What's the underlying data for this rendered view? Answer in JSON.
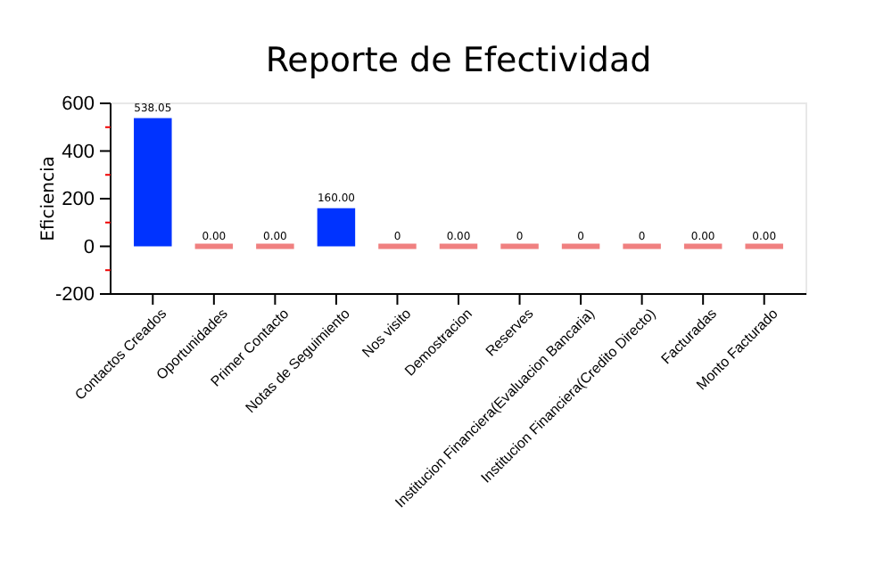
{
  "chart_data": {
    "type": "bar",
    "title": "Reporte de Efectividad",
    "ylabel": "Eficiencia",
    "categories": [
      "Contactos Creados",
      "Oportunidades",
      "Primer Contacto",
      "Notas de Seguimiento",
      "Nos visito",
      "Demostracion",
      "Reserves",
      "Institucion Financiera(Evaluacion Bancaria)",
      "Institucion Financiera(Credito Directo)",
      "Facturadas",
      "Monto Facturado"
    ],
    "values": [
      538.05,
      0,
      0,
      160,
      0,
      0,
      0,
      0,
      0,
      0,
      0
    ],
    "value_labels": [
      "538.05",
      "0.00",
      "0.00",
      "160.00",
      "0",
      "0.00",
      "0",
      "0",
      "0",
      "0.00",
      "0.00"
    ],
    "colors": [
      "#0033ff",
      "#f08080",
      "#f08080",
      "#0033ff",
      "#f08080",
      "#f08080",
      "#f08080",
      "#f08080",
      "#f08080",
      "#f08080",
      "#f08080"
    ],
    "ylim": [
      -200,
      600
    ],
    "yticks": [
      -200,
      {
        "value": -100,
        "label": null
      },
      0,
      {
        "value": 100,
        "label": null
      },
      200,
      {
        "value": 300,
        "label": null
      },
      400,
      {
        "value": 500,
        "label": null
      },
      600
    ],
    "grid": false
  }
}
